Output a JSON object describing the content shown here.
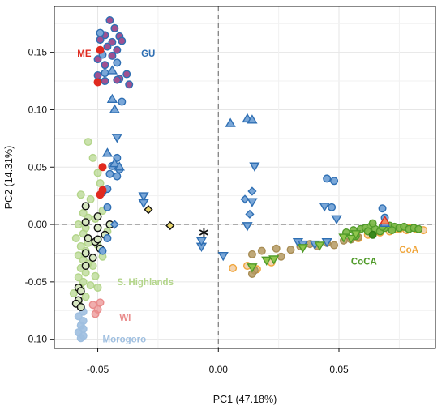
{
  "colors": {
    "ME": "#e02a1f",
    "GU": "#2f6fb3",
    "WI": "#e98b8b",
    "Morogoro": "#9fbfe0",
    "S_Highlands": "#b3d58a",
    "CoCA": "#4f9a28",
    "CoA": "#f0a63c",
    "brown": "#b59a62",
    "tri": "#7aa7d8",
    "green_tri": "#8fc54c",
    "gold": "#e8d56b"
  },
  "chart_data": {
    "type": "scatter",
    "xlabel": "PC1 (47.18%)",
    "ylabel": "PC2 (14.31%)",
    "xlim": [
      -0.068,
      0.09
    ],
    "ylim": [
      -0.108,
      0.19
    ],
    "xticks": [
      -0.05,
      0.0,
      0.05
    ],
    "xtick_labels": [
      "-0.05",
      "0.00",
      "0.05"
    ],
    "yticks": [
      -0.1,
      -0.05,
      0.0,
      0.05,
      0.1,
      0.15
    ],
    "ytick_labels": [
      "-0.10",
      "-0.05",
      "0.00",
      "0.05",
      "0.10",
      "0.15"
    ],
    "grid": true,
    "reference_lines": {
      "x": 0.0,
      "y": 0.0
    },
    "annotations": [
      {
        "text": "ME",
        "x": -0.0585,
        "y": 0.149,
        "color": "ME"
      },
      {
        "text": "GU",
        "x": -0.032,
        "y": 0.149,
        "color": "GU"
      },
      {
        "text": "S. Highlands",
        "x": -0.042,
        "y": -0.05,
        "color": "S_Highlands"
      },
      {
        "text": "WI",
        "x": -0.041,
        "y": -0.081,
        "color": "WI"
      },
      {
        "text": "Morogoro",
        "x": -0.048,
        "y": -0.1,
        "color": "Morogoro"
      },
      {
        "text": "CoCA",
        "x": 0.055,
        "y": -0.032,
        "color": "CoCA"
      },
      {
        "text": "CoA",
        "x": 0.075,
        "y": -0.022,
        "color": "CoA"
      }
    ],
    "series": [
      {
        "marker": "circle",
        "fill": "#b3d58a",
        "stroke": "#b3d58a",
        "alpha": 0.7,
        "points": [
          [
            -0.054,
            0.072
          ],
          [
            -0.052,
            0.058
          ],
          [
            -0.05,
            0.045
          ],
          [
            -0.049,
            0.036
          ],
          [
            -0.057,
            0.026
          ],
          [
            -0.053,
            0.022
          ],
          [
            -0.056,
            0.01
          ],
          [
            -0.054,
            0.006
          ],
          [
            -0.058,
            0.0
          ],
          [
            -0.055,
            -0.003
          ],
          [
            -0.056,
            -0.008
          ],
          [
            -0.059,
            -0.012
          ],
          [
            -0.054,
            -0.016
          ],
          [
            -0.057,
            -0.019
          ],
          [
            -0.055,
            -0.023
          ],
          [
            -0.058,
            -0.027
          ],
          [
            -0.056,
            -0.031
          ],
          [
            -0.054,
            -0.034
          ],
          [
            -0.057,
            -0.038
          ],
          [
            -0.055,
            -0.042
          ],
          [
            -0.058,
            -0.046
          ],
          [
            -0.056,
            -0.05
          ],
          [
            -0.053,
            -0.053
          ],
          [
            -0.057,
            -0.056
          ],
          [
            -0.06,
            -0.06
          ],
          [
            -0.055,
            -0.063
          ],
          [
            -0.058,
            -0.067
          ],
          [
            -0.051,
            -0.045
          ],
          [
            -0.048,
            -0.028
          ],
          [
            -0.05,
            -0.018
          ],
          [
            -0.046,
            -0.006
          ],
          [
            -0.051,
            0.005
          ],
          [
            -0.048,
            0.012
          ],
          [
            -0.052,
            -0.036
          ],
          [
            -0.05,
            -0.055
          ]
        ]
      },
      {
        "marker": "circle",
        "fill": "#9fbfe0",
        "stroke": "#9fbfe0",
        "alpha": 0.9,
        "points": [
          [
            -0.057,
            -0.072
          ],
          [
            -0.056,
            -0.076
          ],
          [
            -0.058,
            -0.08
          ],
          [
            -0.056,
            -0.084
          ],
          [
            -0.057,
            -0.088
          ],
          [
            -0.056,
            -0.091
          ],
          [
            -0.058,
            -0.094
          ],
          [
            -0.056,
            -0.097
          ],
          [
            -0.057,
            -0.099
          ]
        ]
      },
      {
        "marker": "circle",
        "fill": "#e98b8b",
        "stroke": "#e98b8b",
        "alpha": 0.7,
        "points": [
          [
            -0.052,
            -0.07
          ],
          [
            -0.05,
            -0.074
          ],
          [
            -0.051,
            -0.078
          ],
          [
            -0.049,
            -0.068
          ]
        ]
      },
      {
        "marker": "circle",
        "fill": "#d8e8c2",
        "stroke": "#111111",
        "alpha": 1,
        "points": [
          [
            -0.055,
            0.016
          ],
          [
            -0.05,
            0.007
          ],
          [
            -0.045,
            0.0
          ],
          [
            -0.05,
            -0.003
          ],
          [
            -0.047,
            -0.009
          ],
          [
            -0.054,
            -0.012
          ],
          [
            -0.051,
            -0.015
          ],
          [
            -0.049,
            -0.021
          ],
          [
            -0.055,
            -0.025
          ],
          [
            -0.052,
            -0.029
          ],
          [
            -0.055,
            -0.036
          ],
          [
            -0.058,
            -0.055
          ],
          [
            -0.057,
            -0.058
          ],
          [
            -0.058,
            -0.066
          ],
          [
            -0.059,
            -0.069
          ],
          [
            -0.057,
            -0.072
          ],
          [
            -0.05,
            -0.013
          ],
          [
            -0.055,
            0.002
          ]
        ]
      },
      {
        "marker": "circle",
        "fill": "#a05090",
        "stroke": "#2f6fb3",
        "alpha": 1,
        "points": [
          [
            -0.045,
            0.178
          ],
          [
            -0.043,
            0.171
          ],
          [
            -0.047,
            0.165
          ],
          [
            -0.041,
            0.164
          ],
          [
            -0.044,
            0.159
          ],
          [
            -0.049,
            0.161
          ],
          [
            -0.04,
            0.16
          ],
          [
            -0.046,
            0.155
          ],
          [
            -0.042,
            0.152
          ],
          [
            -0.044,
            0.147
          ],
          [
            -0.05,
            0.144
          ],
          [
            -0.047,
            0.139
          ],
          [
            -0.041,
            0.127
          ],
          [
            -0.037,
            0.122
          ],
          [
            -0.042,
            0.126
          ],
          [
            -0.047,
            0.125
          ],
          [
            -0.05,
            0.13
          ],
          [
            -0.038,
            0.131
          ]
        ]
      },
      {
        "marker": "circle",
        "fill": "#7aa7d8",
        "stroke": "#2f6fb3",
        "alpha": 1,
        "points": [
          [
            -0.049,
            0.167
          ],
          [
            -0.048,
            0.148
          ],
          [
            -0.042,
            0.141
          ],
          [
            -0.047,
            0.132
          ],
          [
            -0.04,
            0.107
          ],
          [
            -0.042,
            0.058
          ],
          [
            -0.044,
            0.051
          ],
          [
            -0.041,
            0.048
          ],
          [
            -0.045,
            0.044
          ],
          [
            -0.042,
            0.042
          ],
          [
            -0.046,
            0.031
          ],
          [
            -0.048,
            0.028
          ],
          [
            -0.046,
            0.015
          ],
          [
            -0.046,
            -0.012
          ],
          [
            -0.048,
            -0.023
          ],
          [
            0.045,
            0.04
          ],
          [
            0.048,
            0.038
          ],
          [
            0.047,
            0.015
          ],
          [
            0.068,
            0.014
          ],
          [
            0.069,
            0.006
          ]
        ]
      },
      {
        "marker": "circle",
        "fill": "#e02a1f",
        "stroke": "#e02a1f",
        "alpha": 1,
        "points": [
          [
            -0.049,
            0.152
          ],
          [
            -0.05,
            0.124
          ],
          [
            -0.048,
            0.05
          ],
          [
            -0.048,
            0.03
          ],
          [
            -0.049,
            0.026
          ]
        ]
      },
      {
        "marker": "circle",
        "fill": "#f2cfa8",
        "stroke": "#f0a63c",
        "alpha": 0.9,
        "points": [
          [
            0.006,
            -0.038
          ],
          [
            0.012,
            -0.036
          ],
          [
            0.016,
            -0.039
          ],
          [
            0.022,
            -0.033
          ],
          [
            0.058,
            -0.012
          ],
          [
            0.062,
            -0.009
          ],
          [
            0.067,
            -0.007
          ],
          [
            0.071,
            -0.006
          ],
          [
            0.075,
            -0.004
          ],
          [
            0.079,
            -0.003
          ],
          [
            0.082,
            -0.004
          ],
          [
            0.085,
            -0.005
          ],
          [
            0.078,
            -0.005
          ],
          [
            0.073,
            -0.004
          ]
        ]
      },
      {
        "marker": "circle",
        "fill": "#b59a62",
        "stroke": "#a88d55",
        "alpha": 0.85,
        "points": [
          [
            0.014,
            -0.026
          ],
          [
            0.018,
            -0.023
          ],
          [
            0.024,
            -0.021
          ],
          [
            0.026,
            -0.028
          ],
          [
            0.03,
            -0.022
          ],
          [
            0.034,
            -0.019
          ],
          [
            0.038,
            -0.017
          ],
          [
            0.041,
            -0.019
          ],
          [
            0.045,
            -0.016
          ],
          [
            0.048,
            -0.018
          ],
          [
            0.052,
            -0.014
          ],
          [
            0.055,
            -0.013
          ],
          [
            0.058,
            -0.011
          ],
          [
            0.015,
            -0.04
          ],
          [
            0.014,
            -0.043
          ]
        ]
      },
      {
        "marker": "circle",
        "fill": "#7db84a",
        "stroke": "#4f9a28",
        "alpha": 0.95,
        "points": [
          [
            0.053,
            -0.007
          ],
          [
            0.056,
            -0.005
          ],
          [
            0.059,
            -0.004
          ],
          [
            0.061,
            -0.003
          ],
          [
            0.063,
            -0.002
          ],
          [
            0.065,
            -0.004
          ],
          [
            0.067,
            -0.006
          ],
          [
            0.069,
            -0.003
          ],
          [
            0.071,
            -0.001
          ],
          [
            0.073,
            -0.002
          ],
          [
            0.075,
            -0.003
          ],
          [
            0.077,
            -0.002
          ],
          [
            0.079,
            -0.004
          ],
          [
            0.081,
            -0.003
          ],
          [
            0.083,
            -0.004
          ],
          [
            0.062,
            -0.006
          ],
          [
            0.057,
            -0.01
          ],
          [
            0.064,
            0.001
          ],
          [
            0.068,
            -0.002
          ],
          [
            0.072,
            -0.005
          ]
        ]
      },
      {
        "marker": "circle",
        "fill": "#3a8a1c",
        "stroke": "#2f7a14",
        "alpha": 1,
        "points": [
          [
            0.064,
            -0.009
          ]
        ]
      },
      {
        "marker": "triangle-up",
        "fill": "#7aa7d8",
        "stroke": "#2f6fb3",
        "alpha": 1,
        "points": [
          [
            -0.044,
            0.134
          ],
          [
            -0.044,
            0.109
          ],
          [
            -0.043,
            0.1
          ],
          [
            -0.046,
            0.062
          ],
          [
            -0.043,
            0.053
          ],
          [
            -0.041,
            0.05
          ],
          [
            0.005,
            0.088
          ],
          [
            0.012,
            0.092
          ],
          [
            0.014,
            0.091
          ],
          [
            0.069,
            0.001
          ]
        ]
      },
      {
        "marker": "triangle-down",
        "fill": "#7aa7d8",
        "stroke": "#2f6fb3",
        "alpha": 1,
        "points": [
          [
            -0.042,
            0.076
          ],
          [
            -0.031,
            0.025
          ],
          [
            -0.031,
            0.019
          ],
          [
            0.002,
            -0.027
          ],
          [
            0.015,
            0.051
          ],
          [
            0.014,
            0.02
          ],
          [
            0.012,
            -0.001
          ],
          [
            0.04,
            -0.017
          ],
          [
            0.044,
            0.016
          ],
          [
            0.049,
            0.005
          ],
          [
            0.045,
            -0.015
          ],
          [
            0.033,
            -0.015
          ],
          [
            0.035,
            -0.017
          ],
          [
            -0.007,
            -0.019
          ],
          [
            -0.007,
            -0.014
          ]
        ]
      },
      {
        "marker": "diamond",
        "fill": "#7aa7d8",
        "stroke": "#2f6fb3",
        "alpha": 1,
        "points": [
          [
            0.011,
            0.022
          ],
          [
            0.014,
            0.029
          ],
          [
            0.013,
            0.009
          ],
          [
            -0.043,
            0.0
          ]
        ]
      },
      {
        "marker": "triangle-down",
        "fill": "#8fc54c",
        "stroke": "#4f9a28",
        "alpha": 1,
        "points": [
          [
            0.014,
            -0.037
          ],
          [
            0.02,
            -0.031
          ],
          [
            0.023,
            -0.03
          ],
          [
            0.035,
            -0.02
          ],
          [
            0.042,
            -0.018
          ],
          [
            0.052,
            -0.011
          ],
          [
            0.055,
            -0.012
          ],
          [
            0.057,
            -0.008
          ]
        ]
      },
      {
        "marker": "diamond",
        "fill": "#e8d56b",
        "stroke": "#111111",
        "alpha": 1,
        "points": [
          [
            -0.029,
            0.013
          ],
          [
            -0.02,
            -0.001
          ]
        ]
      },
      {
        "marker": "triangle-up",
        "fill": "#f08a5d",
        "stroke": "#e02a1f",
        "alpha": 1,
        "points": [
          [
            0.069,
            0.003
          ]
        ]
      },
      {
        "marker": "asterisk",
        "fill": "#111111",
        "stroke": "#111111",
        "alpha": 1,
        "points": [
          [
            -0.006,
            -0.007
          ]
        ]
      }
    ]
  }
}
